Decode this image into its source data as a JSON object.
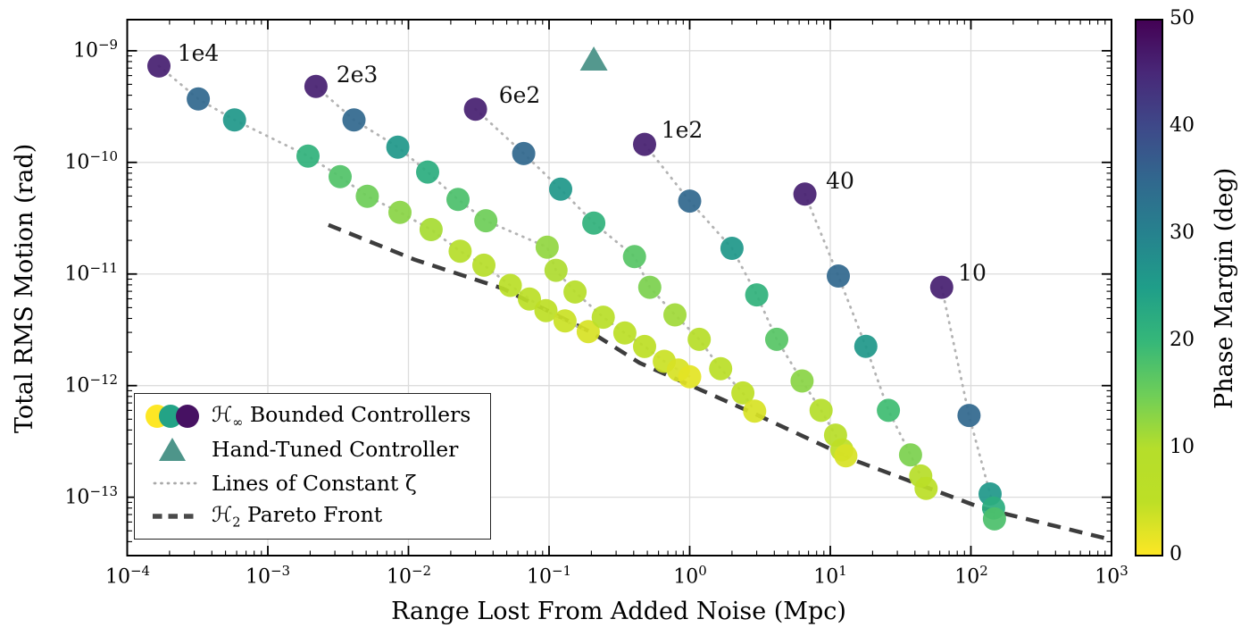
{
  "chart_data": {
    "type": "scatter",
    "xlabel": "Range Lost From Added Noise (Mpc)",
    "ylabel": "Total RMS Motion (rad)",
    "xscale": "log",
    "yscale": "log",
    "xlim": [
      0.0001,
      1000.0
    ],
    "ylim": [
      3e-14,
      1.9e-09
    ],
    "grid": true,
    "x_tick_exponents": [
      -4,
      -3,
      -2,
      -1,
      0,
      1,
      2,
      3
    ],
    "y_tick_exponents": [
      -9,
      -10,
      -11,
      -12,
      -13
    ],
    "colorbar": {
      "label": "Phase Margin (deg)",
      "min": 0,
      "max": 50,
      "ticks": [
        50,
        40,
        30,
        20,
        10,
        0
      ],
      "colormap": "viridis"
    },
    "viridis_stops": [
      [
        0.0,
        "#440154"
      ],
      [
        0.1,
        "#482878"
      ],
      [
        0.2,
        "#3e4989"
      ],
      [
        0.3,
        "#31688e"
      ],
      [
        0.4,
        "#26828e"
      ],
      [
        0.5,
        "#1f9e89"
      ],
      [
        0.6,
        "#35b779"
      ],
      [
        0.7,
        "#6ece58"
      ],
      [
        0.8,
        "#b5de2b"
      ],
      [
        0.9,
        "#bddf26"
      ],
      [
        1.0,
        "#fde725"
      ]
    ],
    "styles": {
      "zeta_line_color": "#b3b3b3",
      "front_color": "#3d3d3d",
      "grid_color": "#dcdcdc",
      "triangle_color": "#4e958a",
      "dot_opacity": 0.93,
      "dot_radius": 13
    },
    "hand_tuned": {
      "x": 0.208,
      "y": 8.3e-10
    },
    "pareto_front": {
      "points": [
        [
          0.0027,
          2.75e-11
        ],
        [
          0.011,
          1.35e-11
        ],
        [
          0.047,
          7.4e-12
        ],
        [
          0.2,
          3e-12
        ],
        [
          0.44,
          1.6e-12
        ],
        [
          2.9,
          5.6e-13
        ],
        [
          15.5,
          2.1e-13
        ],
        [
          120.0,
          8e-14
        ],
        [
          900.0,
          4.3e-14
        ]
      ]
    },
    "zeta_labels": [
      {
        "text": "1e4",
        "x": 0.00032,
        "y": 9.3e-10
      },
      {
        "text": "2e3",
        "x": 0.0043,
        "y": 5.9e-10
      },
      {
        "text": "6e2",
        "x": 0.062,
        "y": 3.9e-10
      },
      {
        "text": "1e2",
        "x": 0.88,
        "y": 1.9e-10
      },
      {
        "text": "40",
        "x": 11.8,
        "y": 6.6e-11
      },
      {
        "text": "10",
        "x": 102.0,
        "y": 9.9e-12
      }
    ],
    "zeta_lines": [
      {
        "label": "1e4",
        "points": [
          [
            0.000168,
            7.3e-10,
            46
          ],
          [
            0.00032,
            3.7e-10,
            35
          ],
          [
            0.00058,
            2.4e-10,
            26
          ],
          [
            0.00193,
            1.14e-10,
            21
          ],
          [
            0.00327,
            7.45e-11,
            17.5
          ],
          [
            0.0051,
            4.97e-11,
            15
          ],
          [
            0.0087,
            3.56e-11,
            13
          ],
          [
            0.0145,
            2.5e-11,
            11
          ],
          [
            0.0233,
            1.6e-11,
            9.5
          ],
          [
            0.0344,
            1.2e-11,
            8.5
          ],
          [
            0.053,
            7.9e-12,
            7
          ],
          [
            0.0725,
            5.97e-12,
            6
          ],
          [
            0.095,
            4.7e-12,
            5
          ],
          [
            0.13,
            3.8e-12,
            4
          ],
          [
            0.19,
            3.05e-12,
            3
          ]
        ]
      },
      {
        "label": "2e3",
        "points": [
          [
            0.0022,
            4.8e-10,
            46
          ],
          [
            0.0041,
            2.4e-10,
            35
          ],
          [
            0.0084,
            1.37e-10,
            26
          ],
          [
            0.0137,
            8.2e-11,
            22
          ],
          [
            0.0225,
            4.65e-11,
            18
          ],
          [
            0.0355,
            3e-11,
            15
          ],
          [
            0.097,
            1.74e-11,
            12.5
          ],
          [
            0.112,
            1.08e-11,
            10.5
          ],
          [
            0.153,
            6.9e-12,
            9
          ],
          [
            0.243,
            4.1e-12,
            7.5
          ],
          [
            0.346,
            2.96e-12,
            6
          ],
          [
            0.478,
            2.24e-12,
            5
          ],
          [
            0.66,
            1.65e-12,
            4
          ],
          [
            0.83,
            1.38e-12,
            3
          ],
          [
            1.0,
            1.2e-12,
            2
          ]
        ]
      },
      {
        "label": "6e2",
        "points": [
          [
            0.03,
            3e-10,
            46
          ],
          [
            0.066,
            1.2e-10,
            35
          ],
          [
            0.121,
            5.75e-11,
            26
          ],
          [
            0.208,
            2.86e-11,
            21
          ],
          [
            0.405,
            1.43e-11,
            17
          ],
          [
            0.52,
            7.6e-12,
            14
          ],
          [
            0.786,
            4.3e-12,
            11.5
          ],
          [
            1.17,
            2.6e-12,
            9
          ],
          [
            1.66,
            1.42e-12,
            7
          ],
          [
            2.39,
            8.6e-13,
            5
          ],
          [
            2.9,
            5.9e-13,
            3
          ]
        ]
      },
      {
        "label": "1e2",
        "points": [
          [
            0.478,
            1.45e-10,
            46
          ],
          [
            1.0,
            4.5e-11,
            35
          ],
          [
            2.0,
            1.7e-11,
            26
          ],
          [
            3.0,
            6.5e-12,
            21
          ],
          [
            4.16,
            2.6e-12,
            17
          ],
          [
            6.3,
            1.1e-12,
            13
          ],
          [
            8.6,
            6e-13,
            10
          ],
          [
            10.9,
            3.6e-13,
            8
          ],
          [
            12.1,
            2.66e-13,
            5
          ],
          [
            12.9,
            2.35e-13,
            3
          ]
        ]
      },
      {
        "label": "40",
        "points": [
          [
            6.6,
            5.2e-11,
            46
          ],
          [
            11.4,
            9.6e-12,
            35
          ],
          [
            17.9,
            2.25e-12,
            26
          ],
          [
            25.9,
            6e-13,
            19
          ],
          [
            37.2,
            2.4e-13,
            14
          ],
          [
            44.0,
            1.55e-13,
            9
          ],
          [
            48.0,
            1.2e-13,
            6
          ]
        ]
      },
      {
        "label": "10",
        "points": [
          [
            62.0,
            7.6e-12,
            46
          ],
          [
            97.0,
            5.4e-13,
            35
          ],
          [
            137.0,
            1.07e-13,
            26
          ],
          [
            145.0,
            8e-14,
            22
          ],
          [
            147.0,
            6.4e-14,
            18
          ]
        ]
      }
    ],
    "legend": {
      "marker_pms": [
        0,
        24,
        48
      ],
      "entries": [
        {
          "prefix": "ℋ",
          "sub": "∞",
          "rest": " Bounded Controllers"
        },
        {
          "label": "Hand-Tuned Controller"
        },
        {
          "label": "Lines of Constant ζ"
        },
        {
          "prefix": "ℋ",
          "sub": "2",
          "rest": " Pareto Front"
        }
      ]
    }
  }
}
